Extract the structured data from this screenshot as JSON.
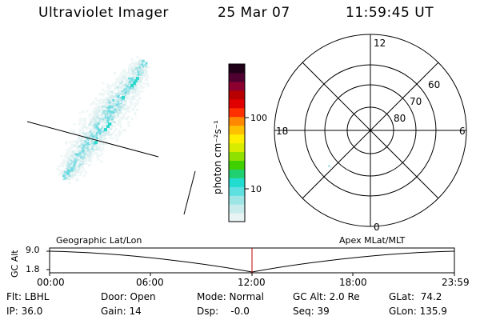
{
  "header": {
    "instrument": "Ultraviolet Imager",
    "date": "25 Mar 07",
    "time": "11:59:45 UT"
  },
  "colorbar": {
    "unit_label": "photon cm⁻²s⁻¹",
    "ticks": [
      "100",
      "10"
    ],
    "colors": [
      "#e8f4f4",
      "#c8ecec",
      "#9ee6e6",
      "#5ee0e0",
      "#22dcd0",
      "#20d070",
      "#40d000",
      "#90e000",
      "#d8ec00",
      "#ffee00",
      "#ffc000",
      "#ff8800",
      "#ff3000",
      "#e00000",
      "#b80000",
      "#8c0030",
      "#500030",
      "#200018"
    ]
  },
  "polar_plot": {
    "mlt_labels": [
      "12",
      "18",
      "6",
      "0"
    ],
    "lat_labels": [
      "60",
      "70",
      "80"
    ]
  },
  "timeline": {
    "axis_label": "GC Alt",
    "y_ticks": [
      "9.0",
      "1.8"
    ],
    "left_title": "Geographic Lat/Lon",
    "right_title": "Apex MLat/MLT",
    "x_ticks": [
      "00:00",
      "06:00",
      "12:00",
      "18:00",
      "23:59"
    ],
    "marker_color": "#c00000"
  },
  "status": {
    "flt": "Flt: LBHL",
    "ip": "IP: 36.0",
    "door": "Door: Open",
    "gain": "Gain: 14",
    "mode": "Mode: Normal",
    "dsp": "Dsp:    -0.0",
    "gc_alt": "GC Alt: 2.0 Re",
    "seq": "Seq: 39",
    "glat": "GLat:  74.2",
    "glon": "GLon: 135.9"
  }
}
